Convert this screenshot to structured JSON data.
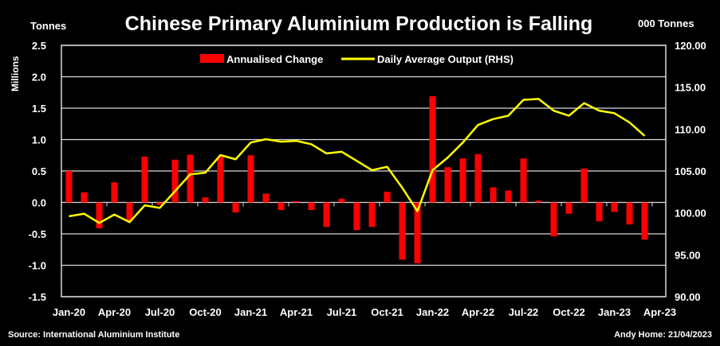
{
  "chart_data": {
    "type": "bar+line",
    "title": "Chinese Primary Aluminium Production is Falling",
    "left_axis_unit": "Tonnes",
    "right_axis_unit": "000 Tonnes",
    "ylabel": "Millions",
    "ylim": [
      -1.5,
      2.5
    ],
    "y_ticks": [
      "2.5",
      "2.0",
      "1.5",
      "1.0",
      "0.5",
      "0.0",
      "-0.5",
      "-1.0",
      "-1.5"
    ],
    "y2lim": [
      90,
      120
    ],
    "y2_ticks": [
      "120.00",
      "115.00",
      "110.00",
      "105.00",
      "100.00",
      "95.00",
      "90.00"
    ],
    "x_tick_labels": [
      "Jan-20",
      "Apr-20",
      "Jul-20",
      "Oct-20",
      "Jan-21",
      "Apr-21",
      "Jul-21",
      "Oct-21",
      "Jan-22",
      "Apr-22",
      "Jul-22",
      "Oct-22",
      "Jan-23",
      "Apr-23"
    ],
    "months": [
      "Jan-20",
      "Feb-20",
      "Mar-20",
      "Apr-20",
      "May-20",
      "Jun-20",
      "Jul-20",
      "Aug-20",
      "Sep-20",
      "Oct-20",
      "Nov-20",
      "Dec-20",
      "Jan-21",
      "Feb-21",
      "Mar-21",
      "Apr-21",
      "May-21",
      "Jun-21",
      "Jul-21",
      "Aug-21",
      "Sep-21",
      "Oct-21",
      "Nov-21",
      "Dec-21",
      "Jan-22",
      "Feb-22",
      "Mar-22",
      "Apr-22",
      "May-22",
      "Jun-22",
      "Jul-22",
      "Aug-22",
      "Sep-22",
      "Oct-22",
      "Nov-22",
      "Dec-22",
      "Jan-23",
      "Feb-23",
      "Mar-23"
    ],
    "grid": true,
    "legend_placement": "top-center",
    "series": [
      {
        "name": "Annualised Change",
        "type": "bar",
        "axis": "left",
        "color": "#ff0000",
        "values": [
          0.5,
          0.16,
          -0.41,
          0.32,
          -0.3,
          0.73,
          -0.04,
          0.68,
          0.76,
          0.08,
          0.73,
          -0.16,
          0.75,
          0.14,
          -0.12,
          0.02,
          -0.12,
          -0.39,
          0.06,
          -0.44,
          -0.39,
          0.17,
          -0.91,
          -0.97,
          1.69,
          0.56,
          0.7,
          0.77,
          0.24,
          0.19,
          0.7,
          0.03,
          -0.54,
          -0.18,
          0.54,
          -0.3,
          -0.15,
          -0.35,
          -0.59
        ]
      },
      {
        "name": "Daily Average Output (RHS)",
        "type": "line",
        "axis": "right",
        "color": "#ffff00",
        "values": [
          99.6,
          99.9,
          98.8,
          99.8,
          98.9,
          100.9,
          100.6,
          102.6,
          104.6,
          104.8,
          106.9,
          106.4,
          108.4,
          108.8,
          108.5,
          108.6,
          108.2,
          107.1,
          107.3,
          106.2,
          105.1,
          105.5,
          103.0,
          100.2,
          105.1,
          106.6,
          108.4,
          110.5,
          111.2,
          111.6,
          113.5,
          113.6,
          112.2,
          111.6,
          113.1,
          112.2,
          111.9,
          110.8,
          109.2
        ]
      }
    ]
  },
  "footer": {
    "source": "Source: International Aluminium Institute",
    "credit": "Andy Home: 21/04/2023"
  }
}
